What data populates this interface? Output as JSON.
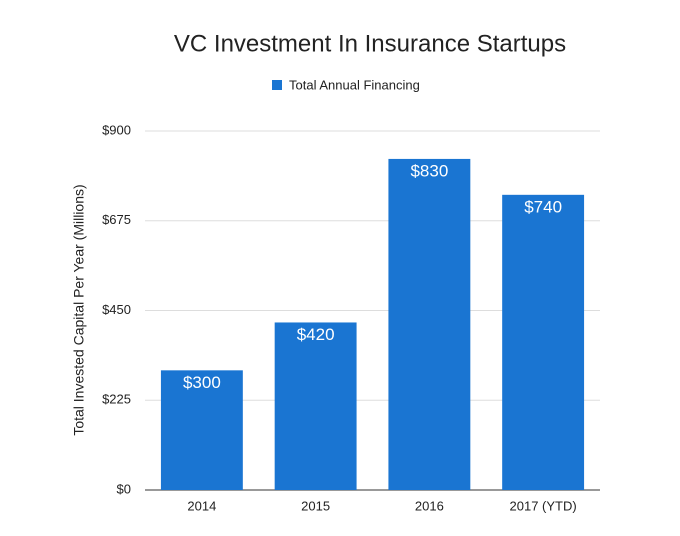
{
  "chart_data": {
    "type": "bar",
    "title": "VC Investment In Insurance Startups",
    "y_label": "Total Invested Capital Per Year (Millions)",
    "categories": [
      "2014",
      "2015",
      "2016",
      "2017 (YTD)"
    ],
    "series": [
      {
        "name": "Total Annual Financing",
        "color": "#1a75d2",
        "values": [
          300,
          420,
          830,
          740
        ],
        "value_labels": [
          "$300",
          "$420",
          "$830",
          "$740"
        ]
      }
    ],
    "ylim": [
      0,
      900
    ],
    "yticks": [
      {
        "value": 0,
        "label": "$0"
      },
      {
        "value": 225,
        "label": "$225"
      },
      {
        "value": 450,
        "label": "$450"
      },
      {
        "value": 675,
        "label": "$675"
      },
      {
        "value": 900,
        "label": "$900"
      }
    ],
    "grid": true,
    "legend": "top"
  }
}
